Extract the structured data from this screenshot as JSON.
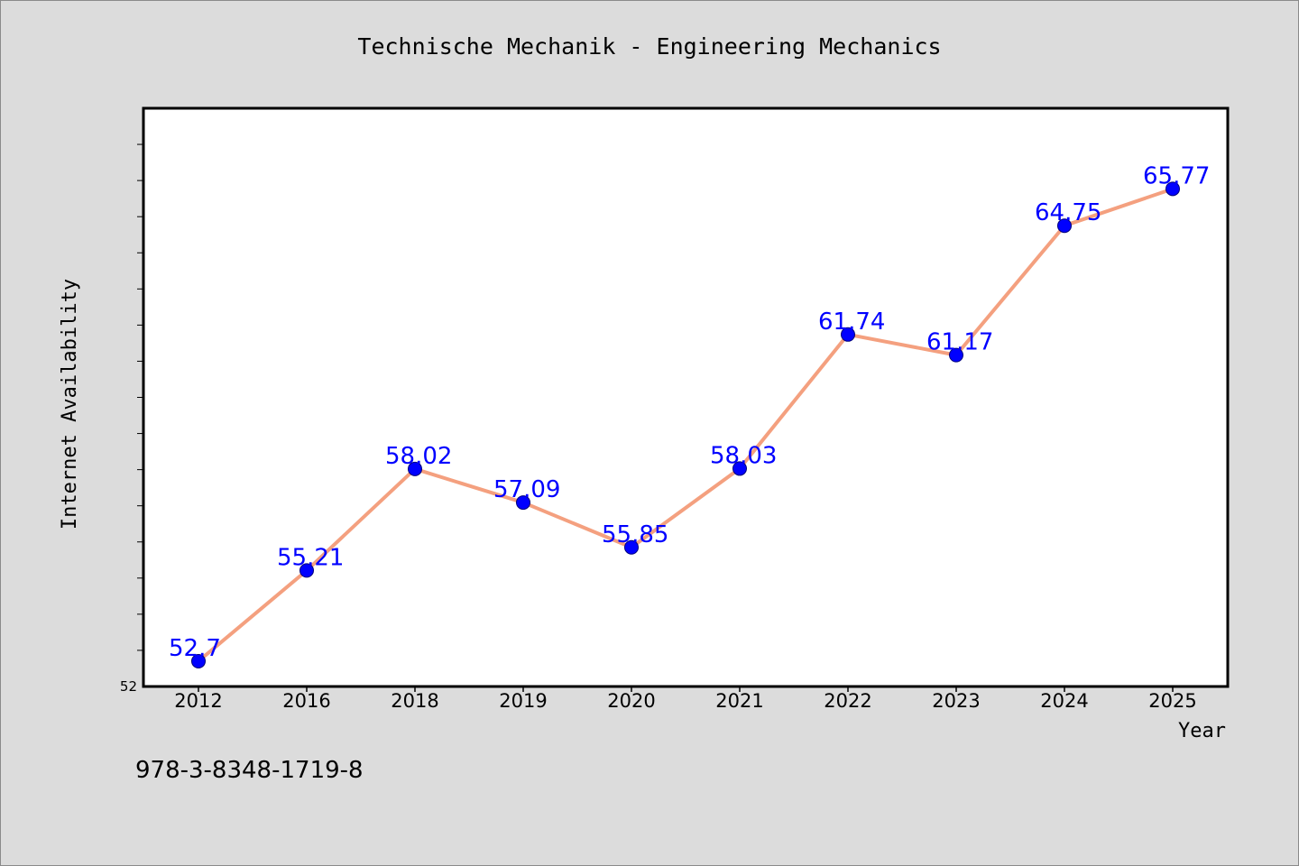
{
  "chart_data": {
    "type": "line",
    "title": "Technische Mechanik - Engineering Mechanics",
    "xlabel": "Year",
    "ylabel": "Internet Availability",
    "categories": [
      "2012",
      "2016",
      "2018",
      "2019",
      "2020",
      "2021",
      "2022",
      "2023",
      "2024",
      "2025"
    ],
    "series": [
      {
        "values": [
          52.7,
          55.21,
          58.02,
          57.09,
          55.85,
          58.03,
          61.74,
          61.17,
          64.75,
          65.77
        ]
      }
    ],
    "data_labels": [
      "52.7",
      "55.21",
      "58.02",
      "57.09",
      "55.85",
      "58.03",
      "61.74",
      "61.17",
      "64.75",
      "65.77"
    ],
    "y_tick_labels": [
      "52"
    ],
    "ylim": [
      52,
      68
    ],
    "y_minor_tick_step": 1,
    "grid": false,
    "legend": "none",
    "colors": {
      "line": "#f4a07f",
      "marker": "#0000ff",
      "marker_edge": "#00007a",
      "data_label": "#0000ff",
      "background": "#dcdcdc",
      "plot_area": "#ffffff"
    }
  },
  "footer": {
    "isbn": "978-3-8348-1719-8"
  }
}
